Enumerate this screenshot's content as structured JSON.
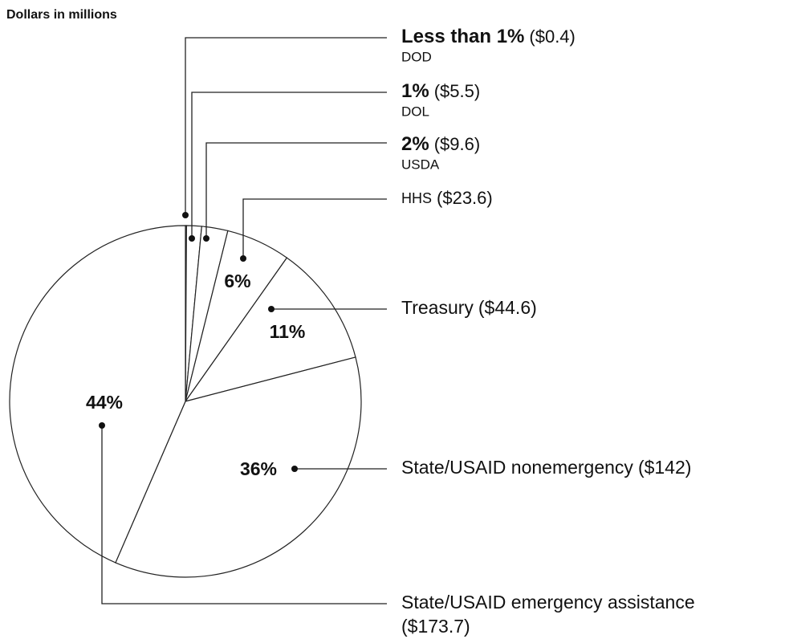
{
  "chart_data": {
    "type": "pie",
    "title": "Dollars in millions",
    "categories": [
      "DOD",
      "DOL",
      "USDA",
      "HHS",
      "Treasury",
      "State/USAID nonemergency",
      "State/USAID emergency assistance"
    ],
    "values": [
      0.4,
      5.5,
      9.6,
      23.6,
      44.6,
      142,
      173.7
    ],
    "value_labels": [
      "($0.4)",
      "($5.5)",
      "($9.6)",
      "($23.6)",
      "($44.6)",
      "($142)",
      "($173.7)"
    ],
    "percent_labels": [
      "Less than 1%",
      "1%",
      "2%",
      "6%",
      "11%",
      "36%",
      "44%"
    ],
    "color": "#ffffff"
  }
}
